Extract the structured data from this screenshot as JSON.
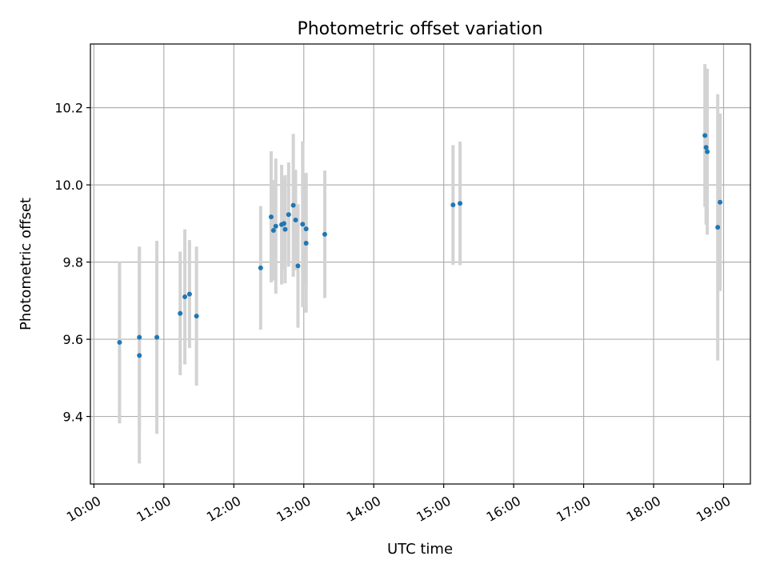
{
  "chart_data": {
    "type": "scatter",
    "title": "Photometric offset variation",
    "xlabel": "UTC time",
    "ylabel": "Photometric offset",
    "x_axis": {
      "kind": "time",
      "range": [
        "09:57",
        "19:23"
      ],
      "ticks": [
        "10:00",
        "11:00",
        "12:00",
        "13:00",
        "14:00",
        "15:00",
        "16:00",
        "17:00",
        "18:00",
        "19:00"
      ]
    },
    "y_axis": {
      "range": [
        9.225,
        10.365
      ],
      "ticks": [
        "9.4",
        "9.6",
        "9.8",
        "10.0",
        "10.2"
      ],
      "tick_values": [
        9.4,
        9.6,
        9.8,
        10.0,
        10.2
      ]
    },
    "grid": true,
    "point_color": "#1f77b4",
    "errorbar_color": "#d3d3d3",
    "points": [
      {
        "x": "10:22",
        "y": 9.592,
        "err": 0.21
      },
      {
        "x": "10:39",
        "y": 9.605,
        "err": 0.235
      },
      {
        "x": "10:39",
        "y": 9.558,
        "err": 0.28
      },
      {
        "x": "10:54",
        "y": 9.605,
        "err": 0.25
      },
      {
        "x": "11:14",
        "y": 9.667,
        "err": 0.16
      },
      {
        "x": "11:18",
        "y": 9.71,
        "err": 0.175
      },
      {
        "x": "11:22",
        "y": 9.717,
        "err": 0.14
      },
      {
        "x": "11:28",
        "y": 9.66,
        "err": 0.18
      },
      {
        "x": "12:23",
        "y": 9.785,
        "err": 0.16
      },
      {
        "x": "12:32",
        "y": 9.917,
        "err": 0.17
      },
      {
        "x": "12:34",
        "y": 9.882,
        "err": 0.13
      },
      {
        "x": "12:36",
        "y": 9.893,
        "err": 0.175
      },
      {
        "x": "12:41",
        "y": 9.897,
        "err": 0.155
      },
      {
        "x": "12:43",
        "y": 9.9,
        "err": 0.12
      },
      {
        "x": "12:44",
        "y": 9.885,
        "err": 0.14
      },
      {
        "x": "12:47",
        "y": 9.923,
        "err": 0.135
      },
      {
        "x": "12:51",
        "y": 9.947,
        "err": 0.185
      },
      {
        "x": "12:53",
        "y": 9.909,
        "err": 0.13
      },
      {
        "x": "12:55",
        "y": 9.79,
        "err": 0.16
      },
      {
        "x": "12:59",
        "y": 9.898,
        "err": 0.215
      },
      {
        "x": "13:02",
        "y": 9.886,
        "err": 0.145
      },
      {
        "x": "13:02",
        "y": 9.849,
        "err": 0.18
      },
      {
        "x": "13:18",
        "y": 9.872,
        "err": 0.165
      },
      {
        "x": "15:08",
        "y": 9.948,
        "err": 0.155
      },
      {
        "x": "15:14",
        "y": 9.952,
        "err": 0.16
      },
      {
        "x": "18:44",
        "y": 10.128,
        "err": 0.185
      },
      {
        "x": "18:45",
        "y": 10.097,
        "err": 0.2
      },
      {
        "x": "18:46",
        "y": 10.086,
        "err": 0.215
      },
      {
        "x": "18:55",
        "y": 9.89,
        "err": 0.345
      },
      {
        "x": "18:57",
        "y": 9.955,
        "err": 0.23
      }
    ]
  }
}
